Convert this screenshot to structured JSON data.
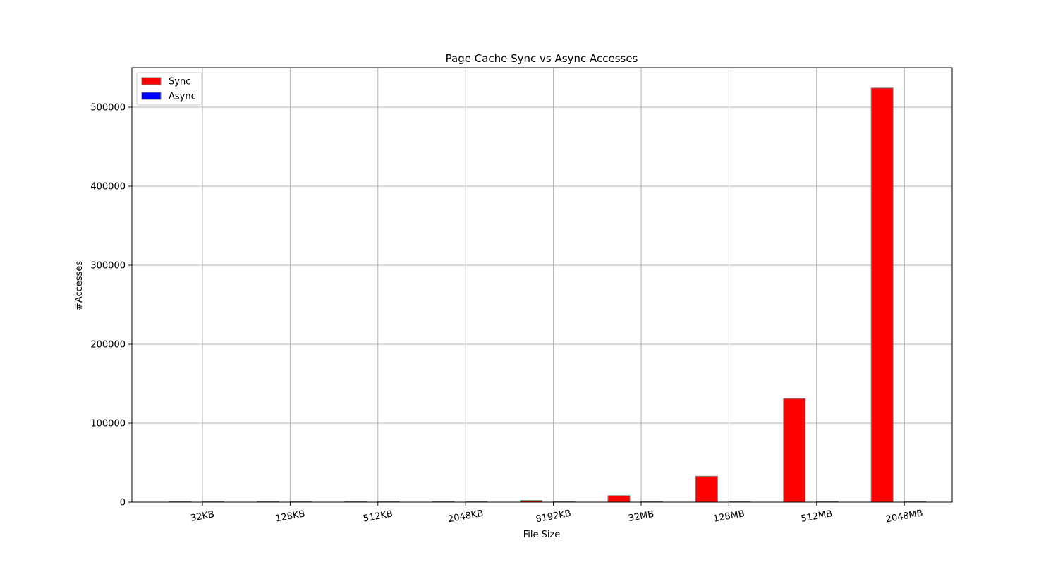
{
  "chart_data": {
    "type": "bar",
    "title": "Page Cache Sync vs Async Accesses",
    "xlabel": "File Size",
    "ylabel": "#Accesses",
    "categories": [
      "32KB",
      "128KB",
      "512KB",
      "2048KB",
      "8192KB",
      "32MB",
      "128MB",
      "512MB",
      "2048MB"
    ],
    "series": [
      {
        "name": "Sync",
        "color": "#ff0000",
        "values": [
          8,
          32,
          128,
          512,
          2048,
          8192,
          32768,
          131072,
          524288
        ]
      },
      {
        "name": "Async",
        "color": "#0000ff",
        "values": [
          0,
          0,
          0,
          0,
          0,
          0,
          0,
          0,
          0
        ]
      }
    ],
    "ylim": [
      0,
      550000
    ],
    "yticks": [
      0,
      100000,
      200000,
      300000,
      400000,
      500000
    ],
    "ytick_labels": [
      "0",
      "100000",
      "200000",
      "300000",
      "400000",
      "500000"
    ],
    "grid": true,
    "legend_position": "top-left"
  }
}
